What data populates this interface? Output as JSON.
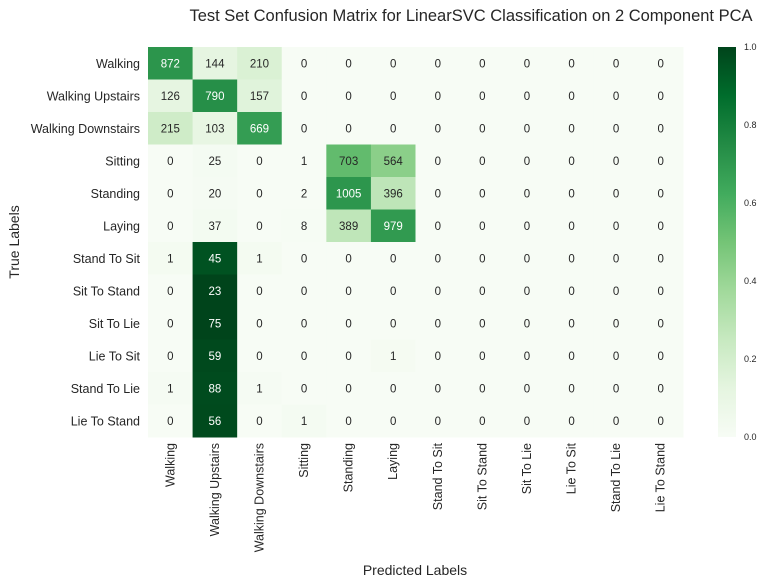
{
  "chart_data": {
    "type": "heatmap",
    "title": "Test Set Confusion Matrix for LinearSVC Classification on 2 Component PCA",
    "xlabel": "Predicted Labels",
    "ylabel": "True Labels",
    "x_categories": [
      "Walking",
      "Walking Upstairs",
      "Walking Downstairs",
      "Sitting",
      "Standing",
      "Laying",
      "Stand To Sit",
      "Sit To Stand",
      "Sit To Lie",
      "Lie To Sit",
      "Stand To Lie",
      "Lie To Stand"
    ],
    "y_categories": [
      "Walking",
      "Walking Upstairs",
      "Walking Downstairs",
      "Sitting",
      "Standing",
      "Laying",
      "Stand To Sit",
      "Sit To Stand",
      "Sit To Lie",
      "Lie To Sit",
      "Stand To Lie",
      "Lie To Stand"
    ],
    "values": [
      [
        872,
        144,
        210,
        0,
        0,
        0,
        0,
        0,
        0,
        0,
        0,
        0
      ],
      [
        126,
        790,
        157,
        0,
        0,
        0,
        0,
        0,
        0,
        0,
        0,
        0
      ],
      [
        215,
        103,
        669,
        0,
        0,
        0,
        0,
        0,
        0,
        0,
        0,
        0
      ],
      [
        0,
        25,
        0,
        1,
        703,
        564,
        0,
        0,
        0,
        0,
        0,
        0
      ],
      [
        0,
        20,
        0,
        2,
        1005,
        396,
        0,
        0,
        0,
        0,
        0,
        0
      ],
      [
        0,
        37,
        0,
        8,
        389,
        979,
        0,
        0,
        0,
        0,
        0,
        0
      ],
      [
        1,
        45,
        1,
        0,
        0,
        0,
        0,
        0,
        0,
        0,
        0,
        0
      ],
      [
        0,
        23,
        0,
        0,
        0,
        0,
        0,
        0,
        0,
        0,
        0,
        0
      ],
      [
        0,
        75,
        0,
        0,
        0,
        0,
        0,
        0,
        0,
        0,
        0,
        0
      ],
      [
        0,
        59,
        0,
        0,
        0,
        1,
        0,
        0,
        0,
        0,
        0,
        0
      ],
      [
        1,
        88,
        1,
        0,
        0,
        0,
        0,
        0,
        0,
        0,
        0,
        0
      ],
      [
        0,
        56,
        0,
        1,
        0,
        0,
        0,
        0,
        0,
        0,
        0,
        0
      ]
    ],
    "normalization": "row",
    "colorbar": {
      "range": [
        0,
        1
      ],
      "ticks": [
        "0.0",
        "0.2",
        "0.4",
        "0.6",
        "0.8",
        "1.0"
      ],
      "colormap": "Greens",
      "color_low": "#f7fcf5",
      "color_high": "#00441b"
    }
  }
}
